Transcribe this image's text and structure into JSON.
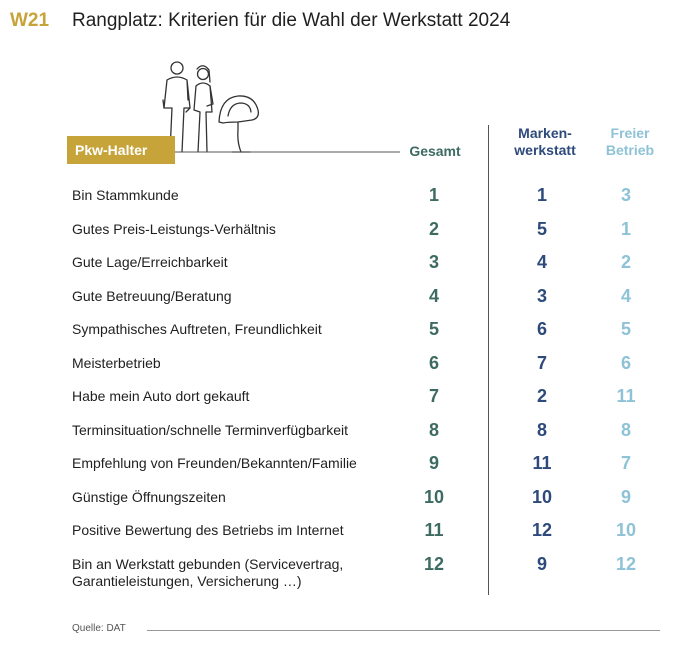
{
  "header": {
    "code": "W21",
    "title": "Rangplatz: Kriterien für die Wahl der Werkstatt 2024"
  },
  "chart_data": {
    "type": "table",
    "row_header": "Pkw-Halter",
    "columns": [
      "Gesamt",
      "Marken-\nwerkstatt",
      "Freier\nBetrieb"
    ],
    "rows": [
      {
        "label": "Bin Stammkunde",
        "gesamt": "1",
        "marke": "1",
        "frei": "3"
      },
      {
        "label": "Gutes Preis-Leistungs-Verhältnis",
        "gesamt": "2",
        "marke": "5",
        "frei": "1"
      },
      {
        "label": "Gute Lage/Erreichbarkeit",
        "gesamt": "3",
        "marke": "4",
        "frei": "2"
      },
      {
        "label": "Gute Betreuung/Beratung",
        "gesamt": "4",
        "marke": "3",
        "frei": "4"
      },
      {
        "label": "Sympathisches Auftreten, Freundlichkeit",
        "gesamt": "5",
        "marke": "6",
        "frei": "5"
      },
      {
        "label": "Meisterbetrieb",
        "gesamt": "6",
        "marke": "7",
        "frei": "6"
      },
      {
        "label": "Habe mein Auto dort gekauft",
        "gesamt": "7",
        "marke": "2",
        "frei": "11"
      },
      {
        "label": "Terminsituation/schnelle Terminverfügbarkeit",
        "gesamt": "8",
        "marke": "8",
        "frei": "8"
      },
      {
        "label": "Empfehlung von Freunden/Bekannten/Familie",
        "gesamt": "9",
        "marke": "11",
        "frei": "7"
      },
      {
        "label": "Günstige Öffnungszeiten",
        "gesamt": "10",
        "marke": "10",
        "frei": "9"
      },
      {
        "label": "Positive Bewertung des Betriebs im Internet",
        "gesamt": "11",
        "marke": "12",
        "frei": "10"
      },
      {
        "label": "Bin an Werkstatt gebunden (Servicevertrag,\nGarantieleistungen, Versicherung …)",
        "gesamt": "12",
        "marke": "9",
        "frei": "12"
      }
    ]
  },
  "footer": {
    "source": "Quelle: DAT"
  },
  "colors": {
    "accent": "#c7a43a",
    "gesamt": "#3d6b62",
    "marke": "#2e4a7a",
    "frei": "#8ec2d6"
  }
}
